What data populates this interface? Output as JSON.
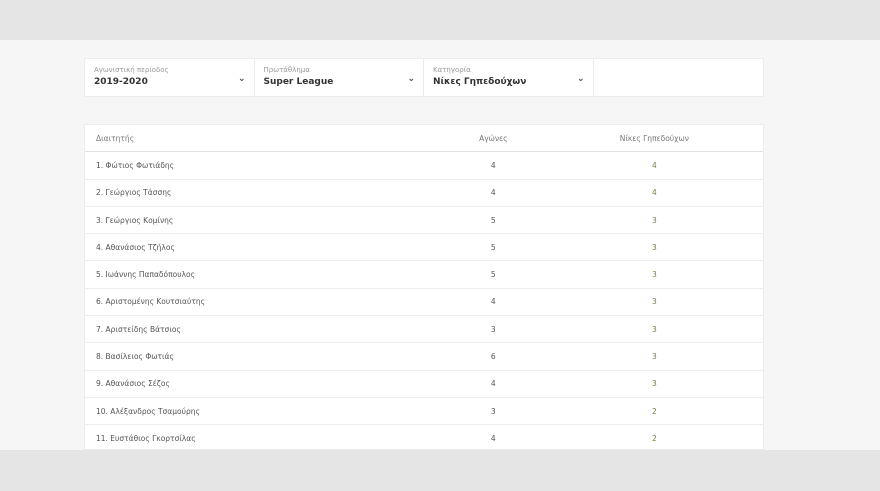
{
  "filters": [
    {
      "label": "Αγωνιστική περίοδος",
      "value": "2019-2020"
    },
    {
      "label": "Πρωτάθλημα",
      "value": "Super League"
    },
    {
      "label": "Κατηγορία",
      "value": "Νίκες Γηπεδούχων"
    }
  ],
  "table": {
    "headers": [
      "Διαιτητής",
      "Αγώνες",
      "Νίκες Γηπεδούχων"
    ],
    "rows": [
      [
        "1. Φώτιος Φωτιάδης",
        "4",
        "4"
      ],
      [
        "2. Γεώργιος Τάσσης",
        "4",
        "4"
      ],
      [
        "3. Γεώργιος Κομίνης",
        "5",
        "3"
      ],
      [
        "4. Αθανάσιος Τζήλος",
        "5",
        "3"
      ],
      [
        "5. Ιωάννης Παπαδόπουλος",
        "5",
        "3"
      ],
      [
        "6. Αριστομένης Κουτσιαύτης",
        "4",
        "3"
      ],
      [
        "7. Αριστείδης Βάτσιος",
        "3",
        "3"
      ],
      [
        "8. Βασίλειος Φωτιάς",
        "6",
        "3"
      ],
      [
        "9. Αθανάσιος Σέζος",
        "4",
        "3"
      ],
      [
        "10. Αλέξανδρος Τσαμούρης",
        "3",
        "2"
      ],
      [
        "11. Ευστάθιος Γκορτσίλας",
        "4",
        "2"
      ]
    ]
  },
  "colors": {
    "wins": "#6b8a3a"
  }
}
